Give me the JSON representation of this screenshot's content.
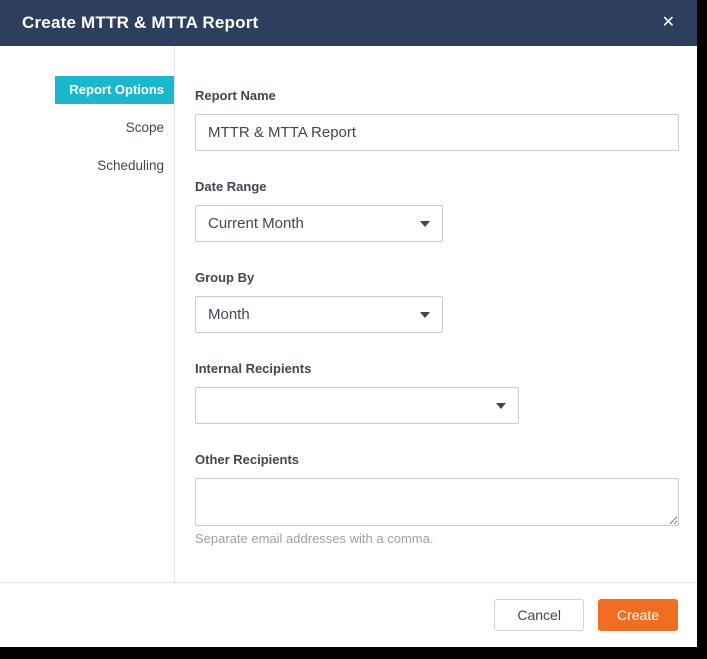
{
  "modal": {
    "title": "Create MTTR & MTTA Report",
    "close_label": "✕"
  },
  "sidebar": {
    "items": [
      {
        "label": "Report Options",
        "active": true
      },
      {
        "label": "Scope",
        "active": false
      },
      {
        "label": "Scheduling",
        "active": false
      }
    ]
  },
  "form": {
    "report_name": {
      "label": "Report Name",
      "value": "MTTR & MTTA Report"
    },
    "date_range": {
      "label": "Date Range",
      "value": "Current Month"
    },
    "group_by": {
      "label": "Group By",
      "value": "Month"
    },
    "internal_recipients": {
      "label": "Internal Recipients",
      "value": ""
    },
    "other_recipients": {
      "label": "Other Recipients",
      "value": "",
      "help": "Separate email addresses with a comma."
    }
  },
  "footer": {
    "cancel_label": "Cancel",
    "create_label": "Create"
  },
  "colors": {
    "header_bg": "#2d3e5e",
    "active_tab_bg": "#1bb8cd",
    "create_button_bg": "#f26d21",
    "backdrop": "#000000"
  }
}
